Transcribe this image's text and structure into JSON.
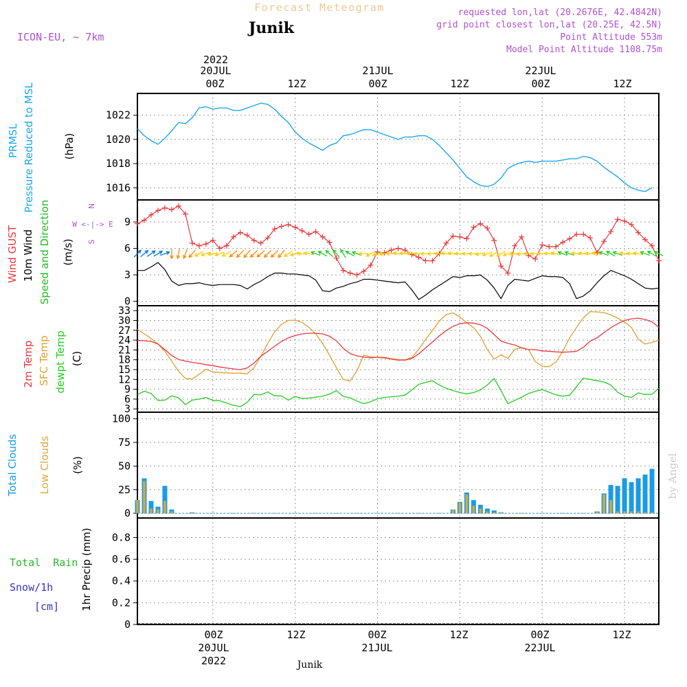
{
  "header": {
    "title": "Forecast Meteogram",
    "location": "Junik",
    "model": "ICON-EU, ~ 7km",
    "requested": "requested lon,lat (20.2676E, 42.4842N)",
    "grid_point": "grid point closest lon,lat (20.25E, 42.5N)",
    "point_altitude": "Point Altitude 553m",
    "model_altitude": "Model Point Altitude 1108.75m",
    "footer_location": "Junik",
    "watermark": "by Angel"
  },
  "colors": {
    "pressure": "#1aa7ec",
    "gust": "#e8383c",
    "wind": "#000000",
    "direction": "#22bb22",
    "temp2m": "#e8383c",
    "sfc": "#e0a030",
    "dewpt": "#22cc22",
    "total_clouds": "#1a9be6",
    "low_clouds": "#d9a840",
    "rain": "#22bb22",
    "snow": "#3333cc",
    "info": "#b050d0",
    "title": "#f0c890"
  },
  "time_axis": {
    "top_ticks": [
      "00Z",
      "12Z",
      "00Z",
      "12Z",
      "00Z",
      "12Z"
    ],
    "top_dates": [
      "20JUL",
      "21JUL",
      "22JUL"
    ],
    "top_year": "2022",
    "bottom_ticks": [
      "00Z",
      "12Z",
      "00Z",
      "12Z",
      "00Z",
      "12Z"
    ],
    "bottom_dates": [
      "20JUL",
      "21JUL",
      "22JUL"
    ],
    "bottom_year": "2022",
    "start_hour": -11,
    "end_hour": 65,
    "tick_hours": [
      0,
      12,
      24,
      36,
      48,
      60
    ]
  },
  "panel_labels": {
    "pressure": [
      "PRMSL",
      "Pressure Reduced to MSL",
      "(hPa)"
    ],
    "wind": [
      "Wind GUST",
      "10m Wind",
      "Speed and Direction",
      "(m/s)"
    ],
    "compass": [
      "N",
      "W <-|-> E",
      "S"
    ],
    "temp": [
      "2m Temp",
      "SFC Temp",
      "dewpt Temp",
      "(C)"
    ],
    "clouds": [
      "Total Clouds",
      "Low Clouds",
      "(%)"
    ],
    "precip": [
      "Total  Rain",
      "Snow/1h",
      "[cm]",
      "1hr Precip (mm)"
    ]
  },
  "chart_data": [
    {
      "type": "line",
      "title": "PRMSL Pressure Reduced to MSL",
      "ylabel": "(hPa)",
      "ylim": [
        1015,
        1023.8
      ],
      "yticks": [
        "1016",
        "1018",
        "1020",
        "1022"
      ],
      "x_hours": [
        -11,
        -10,
        -9,
        -8,
        -7,
        -6,
        -5,
        -4,
        -3,
        -2,
        -1,
        0,
        1,
        2,
        3,
        4,
        5,
        6,
        7,
        8,
        9,
        10,
        11,
        12,
        13,
        14,
        15,
        16,
        17,
        18,
        19,
        20,
        21,
        22,
        23,
        24,
        25,
        26,
        27,
        28,
        29,
        30,
        31,
        32,
        33,
        34,
        35,
        36,
        37,
        38,
        39,
        40,
        41,
        42,
        43,
        44,
        45,
        46,
        47,
        48,
        49,
        50,
        51,
        52,
        53,
        54,
        55,
        56,
        57,
        58,
        59,
        60,
        61,
        62,
        63,
        64,
        65
      ],
      "series": [
        {
          "name": "PRMSL",
          "values": [
            1020.9,
            1020.3,
            1019.9,
            1019.6,
            1020.1,
            1020.7,
            1021.4,
            1021.3,
            1021.8,
            1022.6,
            1022.7,
            1022.5,
            1022.6,
            1022.6,
            1022.4,
            1022.4,
            1022.6,
            1022.8,
            1023.0,
            1022.9,
            1022.5,
            1021.9,
            1021.4,
            1020.6,
            1020.1,
            1019.7,
            1019.4,
            1019.1,
            1019.5,
            1019.7,
            1020.3,
            1020.4,
            1020.6,
            1020.8,
            1020.8,
            1020.6,
            1020.4,
            1020.2,
            1020.0,
            1020.2,
            1020.2,
            1020.3,
            1020.3,
            1020.0,
            1019.5,
            1018.9,
            1018.3,
            1017.6,
            1016.9,
            1016.5,
            1016.2,
            1016.1,
            1016.3,
            1016.8,
            1017.6,
            1017.9,
            1018.1,
            1018.2,
            1018.1,
            1018.2,
            1018.2,
            1018.2,
            1018.3,
            1018.4,
            1018.4,
            1018.6,
            1018.5,
            1018.2,
            1017.7,
            1017.3,
            1016.9,
            1016.4,
            1016.0,
            1015.8,
            1015.7,
            1016.0
          ]
        }
      ]
    },
    {
      "type": "line",
      "title": "Wind GUST / 10m Wind Speed and Direction",
      "ylabel": "(m/s)",
      "ylim": [
        -0.5,
        11.5
      ],
      "yticks": [
        "0",
        "3",
        "6",
        "9"
      ],
      "x_hours": [
        -11,
        -10,
        -9,
        -8,
        -7,
        -6,
        -5,
        -4,
        -3,
        -2,
        -1,
        0,
        1,
        2,
        3,
        4,
        5,
        6,
        7,
        8,
        9,
        10,
        11,
        12,
        13,
        14,
        15,
        16,
        17,
        18,
        19,
        20,
        21,
        22,
        23,
        24,
        25,
        26,
        27,
        28,
        29,
        30,
        31,
        32,
        33,
        34,
        35,
        36,
        37,
        38,
        39,
        40,
        41,
        42,
        43,
        44,
        45,
        46,
        47,
        48,
        49,
        50,
        51,
        52,
        53,
        54,
        55,
        56,
        57,
        58,
        59,
        60,
        61,
        62,
        63,
        64,
        65
      ],
      "series": [
        {
          "name": "Wind GUST",
          "values": [
            8.8,
            9.2,
            9.8,
            10.3,
            10.6,
            10.4,
            10.8,
            9.9,
            6.6,
            6.3,
            6.5,
            6.9,
            6.0,
            6.3,
            7.3,
            7.8,
            7.5,
            6.9,
            6.6,
            7.2,
            8.2,
            8.5,
            8.7,
            8.4,
            8.0,
            7.6,
            7.9,
            7.3,
            6.7,
            4.9,
            3.5,
            3.2,
            3.0,
            3.4,
            4.1,
            5.6,
            5.5,
            5.8,
            6.0,
            5.8,
            5.3,
            5.0,
            4.6,
            4.6,
            5.4,
            6.6,
            7.4,
            7.3,
            7.1,
            8.4,
            8.8,
            8.3,
            6.9,
            4.0,
            3.2,
            6.3,
            7.3,
            5.2,
            4.8,
            6.4,
            6.2,
            6.2,
            6.7,
            7.1,
            7.6,
            7.6,
            7.2,
            5.5,
            6.8,
            7.9,
            9.3,
            9.1,
            8.7,
            7.8,
            7.0,
            6.3,
            4.6
          ]
        },
        {
          "name": "10m Wind",
          "values": [
            3.5,
            3.5,
            3.9,
            4.4,
            3.6,
            2.3,
            1.8,
            2.0,
            2.0,
            2.1,
            1.9,
            1.8,
            1.9,
            1.9,
            1.9,
            1.8,
            1.4,
            1.9,
            2.3,
            2.8,
            3.2,
            3.2,
            3.1,
            3.1,
            3.0,
            2.9,
            2.4,
            1.2,
            1.1,
            1.5,
            1.7,
            2.0,
            2.2,
            2.5,
            2.5,
            2.4,
            2.3,
            2.2,
            2.1,
            2.2,
            1.3,
            0.2,
            0.7,
            1.3,
            1.8,
            2.3,
            2.8,
            2.7,
            2.9,
            2.9,
            3.0,
            2.4,
            1.5,
            0.3,
            1.8,
            2.5,
            2.4,
            2.3,
            2.6,
            2.9,
            2.8,
            2.8,
            2.7,
            2.0,
            0.3,
            0.6,
            1.2,
            2.1,
            2.9,
            3.5,
            3.2,
            2.9,
            2.5,
            2.0,
            1.5,
            1.4,
            1.5
          ]
        }
      ],
      "direction_deg": [
        225,
        230,
        235,
        240,
        250,
        0,
        10,
        20,
        40,
        60,
        70,
        80,
        70,
        60,
        50,
        45,
        40,
        45,
        50,
        45,
        45,
        40,
        55,
        70,
        90,
        100,
        110,
        120,
        130,
        140,
        150,
        120,
        110,
        90,
        60,
        70,
        80,
        90,
        100,
        100,
        95,
        90,
        90,
        90,
        95,
        100,
        100,
        95,
        90,
        90,
        80,
        70,
        60,
        60,
        70,
        80,
        80,
        90,
        90,
        90,
        95,
        100,
        110,
        110,
        100,
        100,
        95,
        100,
        110,
        120,
        110,
        100,
        95,
        100,
        110,
        120,
        115
      ]
    },
    {
      "type": "line",
      "title": "2m Temp / SFC Temp / dewpt Temp",
      "ylabel": "(C)",
      "ylim": [
        2,
        34.5
      ],
      "yticks": [
        "3",
        "6",
        "9",
        "12",
        "15",
        "18",
        "21",
        "24",
        "27",
        "30",
        "33"
      ],
      "x_hours": [
        -11,
        -10,
        -9,
        -8,
        -7,
        -6,
        -5,
        -4,
        -3,
        -2,
        -1,
        0,
        1,
        2,
        3,
        4,
        5,
        6,
        7,
        8,
        9,
        10,
        11,
        12,
        13,
        14,
        15,
        16,
        17,
        18,
        19,
        20,
        21,
        22,
        23,
        24,
        25,
        26,
        27,
        28,
        29,
        30,
        31,
        32,
        33,
        34,
        35,
        36,
        37,
        38,
        39,
        40,
        41,
        42,
        43,
        44,
        45,
        46,
        47,
        48,
        49,
        50,
        51,
        52,
        53,
        54,
        55,
        56,
        57,
        58,
        59,
        60,
        61,
        62,
        63,
        64,
        65
      ],
      "series": [
        {
          "name": "2m Temp",
          "values": [
            23.9,
            23.8,
            23.6,
            22.8,
            21.1,
            19.3,
            18.1,
            17.6,
            17.2,
            16.9,
            16.5,
            16.2,
            15.8,
            15.5,
            15.2,
            15.0,
            15.5,
            17.0,
            19.1,
            20.6,
            22.1,
            23.6,
            24.7,
            25.4,
            25.9,
            26.1,
            26.1,
            25.9,
            25.2,
            23.8,
            21.5,
            19.9,
            19.2,
            18.8,
            18.6,
            18.8,
            18.7,
            18.3,
            18.0,
            17.9,
            18.4,
            19.8,
            21.6,
            23.4,
            25.3,
            26.9,
            28.2,
            29.0,
            29.3,
            29.2,
            28.7,
            27.6,
            25.7,
            23.7,
            23.0,
            22.5,
            21.6,
            21.1,
            21.1,
            20.7,
            20.6,
            20.4,
            20.3,
            20.4,
            20.6,
            21.8,
            23.7,
            24.7,
            26.3,
            27.8,
            29.0,
            30.0,
            30.5,
            30.7,
            30.3,
            29.6,
            27.9
          ]
        },
        {
          "name": "SFC Temp",
          "values": [
            27.3,
            25.9,
            24.5,
            22.8,
            20.6,
            17.6,
            14.5,
            12.3,
            12.1,
            13.6,
            15.1,
            14.3,
            14.1,
            14.0,
            13.9,
            13.9,
            13.7,
            15.6,
            19.1,
            23.0,
            26.5,
            28.8,
            30.0,
            30.1,
            29.4,
            27.9,
            25.9,
            23.0,
            19.4,
            15.6,
            12.0,
            11.5,
            14.6,
            19.4,
            18.9,
            18.7,
            18.5,
            18.2,
            17.8,
            18.0,
            18.7,
            21.2,
            24.2,
            26.9,
            29.8,
            31.8,
            32.3,
            31.1,
            29.3,
            27.8,
            25.2,
            21.1,
            18.2,
            19.5,
            18.4,
            21.2,
            21.7,
            21.1,
            17.5,
            16.0,
            15.9,
            17.3,
            20.6,
            24.7,
            27.9,
            30.8,
            32.7,
            32.6,
            32.4,
            31.7,
            30.7,
            29.5,
            27.9,
            24.3,
            22.8,
            23.3,
            24.0
          ]
        },
        {
          "name": "dewpt Temp",
          "values": [
            7.4,
            8.4,
            7.7,
            5.6,
            5.7,
            7.0,
            6.4,
            4.3,
            5.7,
            6.0,
            6.5,
            5.6,
            5.5,
            4.8,
            4.1,
            3.7,
            5.0,
            7.4,
            7.3,
            8.2,
            7.0,
            7.0,
            5.7,
            6.8,
            6.2,
            6.3,
            6.6,
            6.9,
            7.5,
            8.6,
            6.8,
            6.4,
            5.4,
            4.6,
            5.2,
            6.1,
            6.5,
            6.7,
            6.9,
            7.2,
            8.8,
            10.5,
            11.1,
            11.6,
            10.3,
            9.3,
            8.6,
            8.0,
            7.6,
            8.0,
            8.8,
            10.3,
            12.3,
            8.6,
            4.6,
            5.6,
            6.6,
            7.7,
            8.4,
            8.9,
            8.1,
            7.3,
            6.9,
            7.2,
            9.8,
            12.4,
            12.0,
            11.6,
            11.2,
            10.3,
            8.1,
            6.9,
            6.5,
            7.9,
            7.4,
            7.5,
            9.3
          ]
        }
      ]
    },
    {
      "type": "bar",
      "title": "Total Clouds / Low Clouds",
      "ylabel": "(%)",
      "ylim": [
        -5,
        107
      ],
      "yticks": [
        "0",
        "25",
        "50",
        "75",
        "100"
      ],
      "x_hours": [
        -11,
        -10,
        -9,
        -8,
        -7,
        -6,
        -5,
        -4,
        -3,
        -2,
        -1,
        0,
        1,
        2,
        3,
        4,
        5,
        6,
        7,
        8,
        9,
        10,
        11,
        12,
        13,
        14,
        15,
        16,
        17,
        18,
        19,
        20,
        21,
        22,
        23,
        24,
        25,
        26,
        27,
        28,
        29,
        30,
        31,
        32,
        33,
        34,
        35,
        36,
        37,
        38,
        39,
        40,
        41,
        42,
        43,
        44,
        45,
        46,
        47,
        48,
        49,
        50,
        51,
        52,
        53,
        54,
        55,
        56,
        57,
        58,
        59,
        60,
        61,
        62,
        63,
        64,
        65
      ],
      "series": [
        {
          "name": "Total Clouds",
          "values": [
            14,
            37,
            13,
            7,
            29,
            4,
            0,
            0,
            1,
            0,
            0,
            0,
            0,
            0,
            0,
            0,
            0,
            0,
            0,
            0,
            0,
            0,
            0,
            0,
            0,
            0,
            0,
            0,
            0,
            0,
            0,
            0,
            0,
            0,
            0,
            0,
            0,
            0,
            0,
            0,
            0,
            0,
            0,
            0,
            0,
            0,
            4,
            12,
            22,
            14,
            9,
            5,
            3,
            1,
            0,
            0,
            0,
            0,
            0,
            0,
            0,
            0,
            0,
            0,
            0,
            0,
            0,
            2,
            21,
            30,
            29,
            37,
            33,
            37,
            41,
            47,
            0
          ]
        },
        {
          "name": "Low Clouds",
          "values": [
            14,
            34,
            5,
            4,
            13,
            2,
            0,
            0,
            1,
            0,
            0,
            0,
            0,
            0,
            0,
            0,
            0,
            0,
            0,
            0,
            0,
            0,
            0,
            0,
            0,
            0,
            0,
            0,
            0,
            0,
            0,
            0,
            0,
            0,
            0,
            0,
            0,
            0,
            0,
            0,
            0,
            0,
            0,
            0,
            0,
            0,
            4,
            11,
            20,
            8,
            5,
            2,
            1,
            1,
            0,
            0,
            0,
            0,
            0,
            0,
            0,
            0,
            0,
            0,
            0,
            0,
            0,
            2,
            20,
            14,
            2,
            2,
            2,
            2,
            1,
            1,
            0
          ]
        }
      ]
    },
    {
      "type": "bar",
      "title": "1hr Precip",
      "ylabel": "1hr Precip (mm)",
      "ylim": [
        0,
        0.98
      ],
      "yticks": [
        "0",
        "0.2",
        "0.4",
        "0.6",
        "0.8"
      ],
      "series": [
        {
          "name": "Total Rain",
          "values": []
        },
        {
          "name": "Snow/1h",
          "values": []
        }
      ]
    }
  ]
}
